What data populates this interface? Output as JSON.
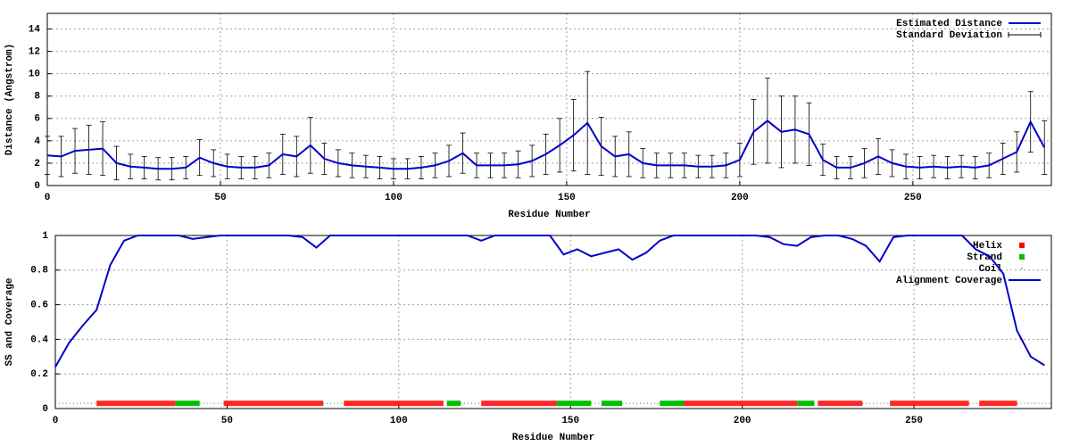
{
  "chart_data": [
    {
      "type": "line",
      "xlabel": "Residue Number",
      "ylabel": "Distance (Angstrom)",
      "xlim": [
        0,
        290
      ],
      "xticks": [
        0,
        50,
        100,
        150,
        200,
        250
      ],
      "ylim": [
        0,
        15.4
      ],
      "yticks": [
        0,
        2,
        4,
        6,
        8,
        10,
        12,
        14
      ],
      "grid": true,
      "error_name": "Standard Deviation",
      "x": [
        0,
        4,
        8,
        12,
        16,
        20,
        24,
        28,
        32,
        36,
        40,
        44,
        48,
        52,
        56,
        60,
        64,
        68,
        72,
        76,
        80,
        84,
        88,
        92,
        96,
        100,
        104,
        108,
        112,
        116,
        120,
        124,
        128,
        132,
        136,
        140,
        144,
        148,
        152,
        156,
        160,
        164,
        168,
        172,
        176,
        180,
        184,
        188,
        192,
        196,
        200,
        204,
        208,
        212,
        216,
        220,
        224,
        228,
        232,
        236,
        240,
        244,
        248,
        252,
        256,
        260,
        264,
        268,
        272,
        276,
        280,
        284,
        288
      ],
      "series": [
        {
          "name": "Estimated Distance",
          "color": "#0000cc",
          "values": [
            2.7,
            2.6,
            3.1,
            3.2,
            3.3,
            2.0,
            1.7,
            1.6,
            1.5,
            1.5,
            1.6,
            2.5,
            2.0,
            1.7,
            1.6,
            1.6,
            1.8,
            2.8,
            2.6,
            3.6,
            2.4,
            2.0,
            1.8,
            1.7,
            1.6,
            1.5,
            1.5,
            1.6,
            1.8,
            2.2,
            2.9,
            1.8,
            1.8,
            1.8,
            1.9,
            2.2,
            2.8,
            3.6,
            4.5,
            5.6,
            3.5,
            2.6,
            2.8,
            2.0,
            1.8,
            1.8,
            1.8,
            1.7,
            1.7,
            1.8,
            2.3,
            4.8,
            5.8,
            4.8,
            5.0,
            4.6,
            2.3,
            1.6,
            1.6,
            2.0,
            2.6,
            2.0,
            1.7,
            1.6,
            1.7,
            1.6,
            1.7,
            1.6,
            1.8,
            2.4,
            3.0,
            5.7,
            3.4
          ],
          "errors": [
            1.7,
            1.8,
            2.0,
            2.2,
            2.4,
            1.5,
            1.1,
            1.0,
            1.0,
            1.0,
            1.0,
            1.6,
            1.2,
            1.1,
            1.0,
            1.0,
            1.1,
            1.8,
            1.8,
            2.5,
            1.4,
            1.2,
            1.1,
            1.0,
            1.0,
            0.9,
            0.9,
            1.0,
            1.1,
            1.4,
            1.8,
            1.1,
            1.1,
            1.1,
            1.2,
            1.4,
            1.8,
            2.4,
            3.2,
            4.6,
            2.6,
            1.8,
            2.0,
            1.3,
            1.1,
            1.1,
            1.1,
            1.0,
            1.0,
            1.1,
            1.5,
            2.9,
            3.8,
            3.2,
            3.0,
            2.8,
            1.4,
            1.0,
            1.0,
            1.3,
            1.6,
            1.2,
            1.1,
            1.0,
            1.0,
            1.0,
            1.0,
            1.0,
            1.1,
            1.4,
            1.8,
            2.7,
            2.4
          ]
        }
      ]
    },
    {
      "type": "line",
      "xlabel": "Residue Number",
      "ylabel": "SS and Coverage",
      "xlim": [
        0,
        290
      ],
      "xticks": [
        0,
        50,
        100,
        150,
        200,
        250
      ],
      "ylim": [
        0,
        1
      ],
      "yticks": [
        0,
        0.2,
        0.4,
        0.6,
        0.8,
        1
      ],
      "grid": true,
      "x": [
        0,
        4,
        8,
        12,
        16,
        20,
        24,
        28,
        32,
        36,
        40,
        44,
        48,
        52,
        56,
        60,
        64,
        68,
        72,
        76,
        80,
        84,
        88,
        92,
        96,
        100,
        104,
        108,
        112,
        116,
        120,
        124,
        128,
        132,
        136,
        140,
        144,
        148,
        152,
        156,
        160,
        164,
        168,
        172,
        176,
        180,
        184,
        188,
        192,
        196,
        200,
        204,
        208,
        212,
        216,
        220,
        224,
        228,
        232,
        236,
        240,
        244,
        248,
        252,
        256,
        260,
        264,
        268,
        272,
        276,
        280,
        284,
        288
      ],
      "series": [
        {
          "name": "Alignment Coverage",
          "color": "#0000cc",
          "values": [
            0.24,
            0.38,
            0.48,
            0.57,
            0.83,
            0.97,
            1,
            1,
            1,
            1,
            0.98,
            0.99,
            1,
            1,
            1,
            1,
            1,
            1,
            0.99,
            0.93,
            1,
            1,
            1,
            1,
            1,
            1,
            1,
            1,
            1,
            1,
            1,
            0.97,
            1,
            1,
            1,
            1,
            1,
            0.89,
            0.92,
            0.88,
            0.9,
            0.92,
            0.86,
            0.9,
            0.97,
            1,
            1,
            1,
            1,
            1,
            1,
            1,
            0.99,
            0.95,
            0.94,
            0.99,
            1,
            1,
            0.98,
            0.94,
            0.85,
            0.99,
            1,
            1,
            1,
            1,
            1,
            0.92,
            0.88,
            0.78,
            0.45,
            0.3,
            0.25
          ]
        }
      ],
      "ss_level": 0.03,
      "ss": [
        {
          "name": "Helix",
          "color": "#ff0000",
          "segments": [
            [
              12,
              35
            ],
            [
              49,
              78
            ],
            [
              84,
              113
            ],
            [
              124,
              146
            ],
            [
              181,
              216
            ],
            [
              222,
              235
            ],
            [
              243,
              266
            ],
            [
              269,
              280
            ]
          ]
        },
        {
          "name": "Strand",
          "color": "#00c000",
          "segments": [
            [
              35,
              42
            ],
            [
              114,
              118
            ],
            [
              146,
              156
            ],
            [
              159,
              165
            ],
            [
              176,
              183
            ],
            [
              216,
              221
            ]
          ]
        },
        {
          "name": "Coil",
          "color": "#00a000",
          "segments": [
            [
              0,
              12
            ],
            [
              42,
              49
            ],
            [
              78,
              84
            ],
            [
              118,
              124
            ],
            [
              156,
              159
            ],
            [
              165,
              176
            ],
            [
              235,
              243
            ],
            [
              266,
              269
            ],
            [
              280,
              290
            ]
          ]
        }
      ]
    }
  ]
}
